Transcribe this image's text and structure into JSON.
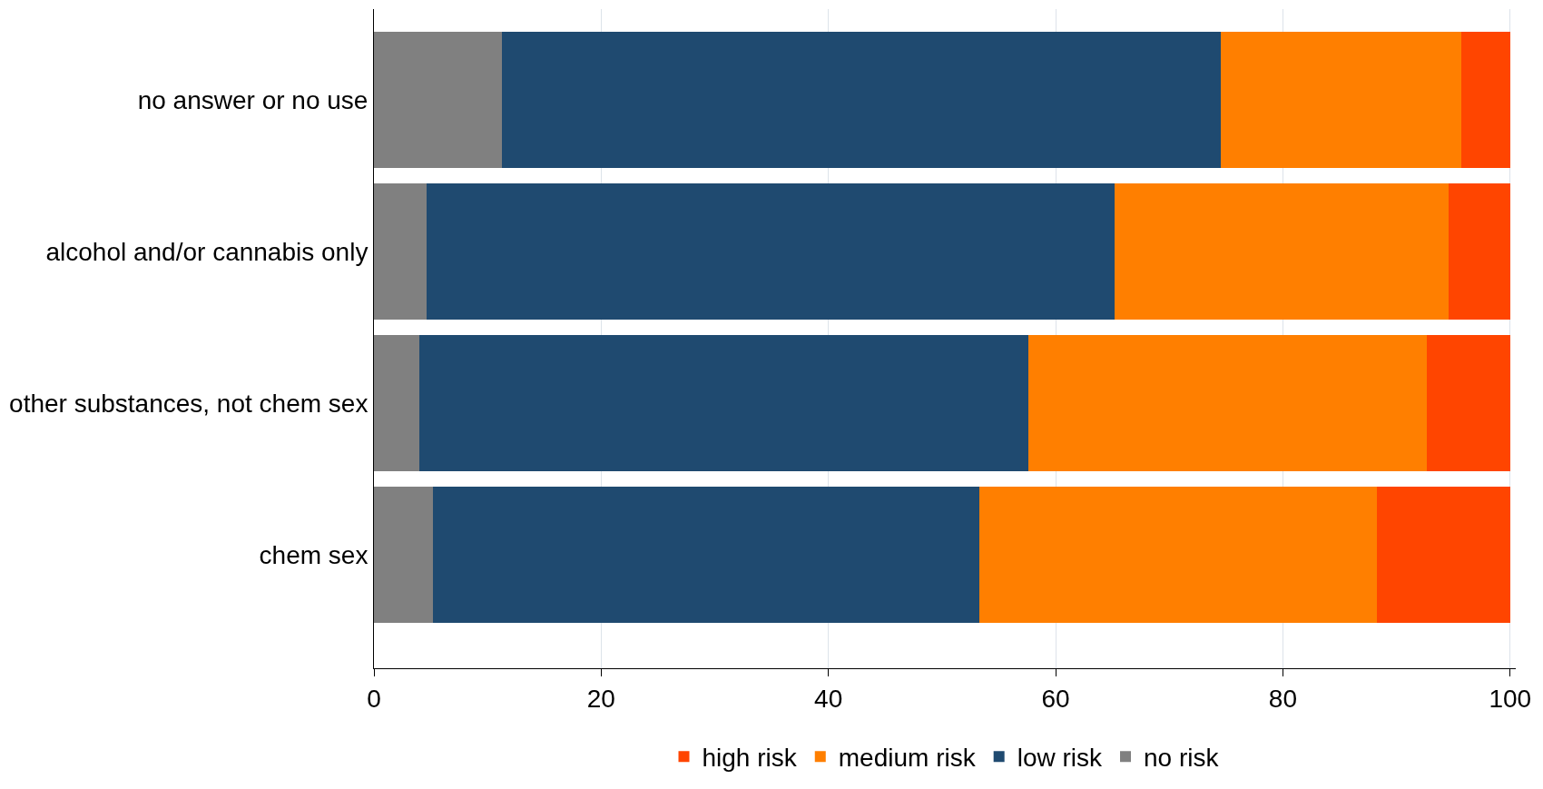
{
  "chart_data": {
    "type": "bar",
    "orientation": "horizontal",
    "stacked": true,
    "categories": [
      "no answer or no use",
      "alcohol and/or cannabis only",
      "other substances, not chem sex",
      "chem sex"
    ],
    "series": [
      {
        "name": "no risk",
        "color": "#808080",
        "values": [
          11.3,
          4.6,
          4.0,
          5.2
        ]
      },
      {
        "name": "low risk",
        "color": "#1f4a70",
        "values": [
          63.2,
          60.6,
          53.6,
          48.1
        ]
      },
      {
        "name": "medium risk",
        "color": "#ff7f00",
        "values": [
          21.2,
          29.4,
          35.1,
          35.0
        ]
      },
      {
        "name": "high risk",
        "color": "#ff4500",
        "values": [
          4.3,
          5.4,
          7.3,
          11.7
        ]
      }
    ],
    "xlim": [
      0,
      100.5
    ],
    "xticks": [
      0,
      20,
      40,
      60,
      80,
      100
    ],
    "grid": "x",
    "legend": "bottom"
  }
}
